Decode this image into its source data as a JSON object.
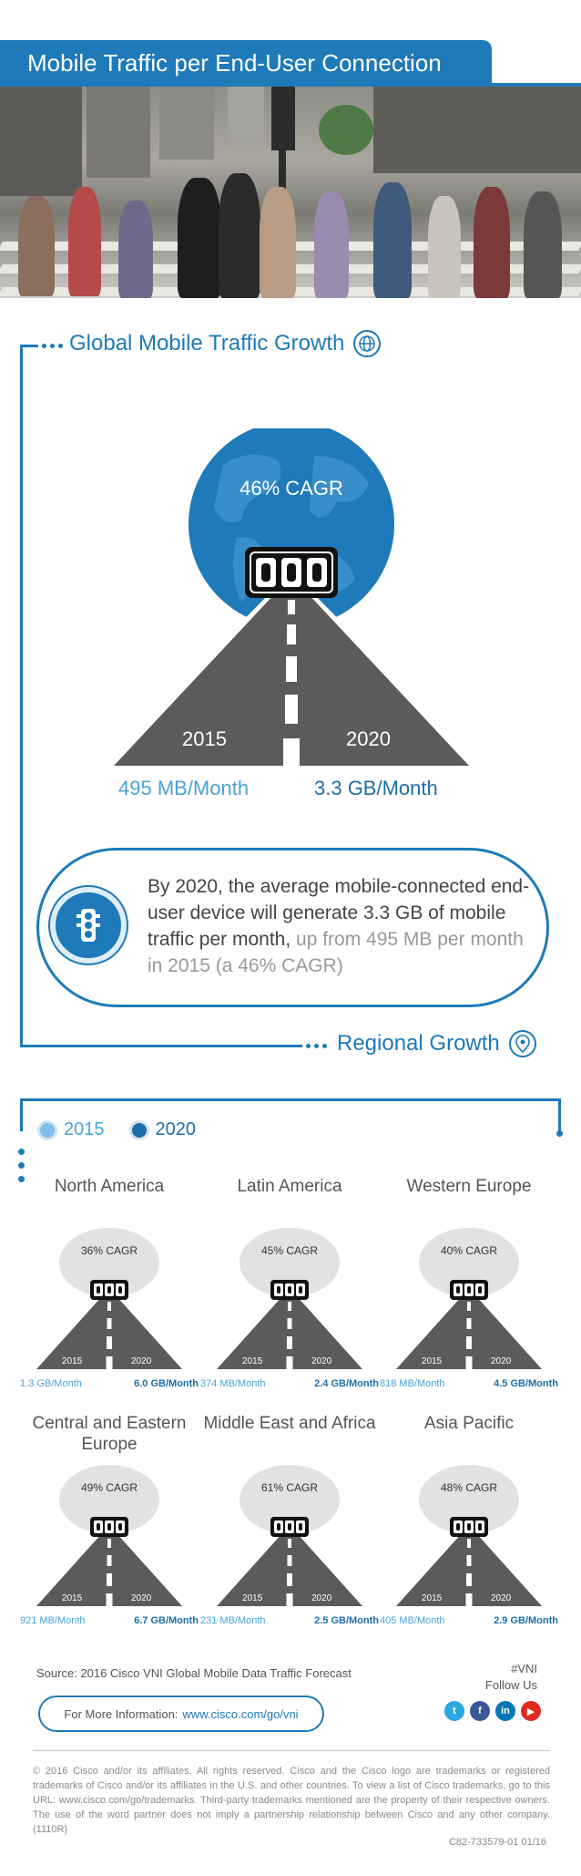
{
  "header": {
    "title": "Mobile Traffic per End-User Connection"
  },
  "global": {
    "heading": "Global Mobile Traffic Growth",
    "heading_icon": "globe-icon",
    "cagr": "46% CAGR",
    "year_start": "2015",
    "year_end": "2020",
    "rate_start": "495 MB/Month",
    "rate_end": "3.3 GB/Month",
    "colors": {
      "light": "#4aa3d8",
      "dark": "#1e6fa8",
      "road": "#5b5b5b"
    }
  },
  "callout": {
    "icon": "traffic-light-icon",
    "strong_text": "By 2020, the average mobile-connected end-user device will generate 3.3 GB of mobile traffic per month,",
    "light_text": " up from 495 MB per month in 2015 (a 46% CAGR)"
  },
  "regional": {
    "heading": "Regional Growth",
    "heading_icon": "location-pin-icon",
    "legend_2015": "2015",
    "legend_2020": "2020",
    "regions": [
      {
        "name": "North America",
        "cagr": "36% CAGR",
        "y2015": "2015",
        "y2020": "2020",
        "rate_2015": "1.3 GB/Month",
        "rate_2020": "6.0 GB/Month"
      },
      {
        "name": "Latin America",
        "cagr": "45% CAGR",
        "y2015": "2015",
        "y2020": "2020",
        "rate_2015": "374 MB/Month",
        "rate_2020": "2.4 GB/Month"
      },
      {
        "name": "Western Europe",
        "cagr": "40% CAGR",
        "y2015": "2015",
        "y2020": "2020",
        "rate_2015": "818 MB/Month",
        "rate_2020": "4.5 GB/Month"
      },
      {
        "name": "Central and Eastern Europe",
        "cagr": "49% CAGR",
        "y2015": "2015",
        "y2020": "2020",
        "rate_2015": "921 MB/Month",
        "rate_2020": "6.7 GB/Month"
      },
      {
        "name": "Middle East and Africa",
        "cagr": "61% CAGR",
        "y2015": "2015",
        "y2020": "2020",
        "rate_2015": "231 MB/Month",
        "rate_2020": "2.5 GB/Month"
      },
      {
        "name": "Asia Pacific",
        "cagr": "48% CAGR",
        "y2015": "2015",
        "y2020": "2020",
        "rate_2015": "405 MB/Month",
        "rate_2020": "2.9 GB/Month"
      }
    ]
  },
  "footer": {
    "source": "Source: 2016 Cisco VNI Global Mobile Data Traffic Forecast",
    "hashtag": "#VNI",
    "follow": "Follow Us",
    "social": [
      "twitter-icon",
      "facebook-icon",
      "linkedin-icon",
      "youtube-icon"
    ],
    "more_label": "For More Information:",
    "more_link": "www.cisco.com/go/vni",
    "legal": "© 2016 Cisco and/or its affiliates. All rights reserved. Cisco and the Cisco logo are trademarks or registered trademarks of Cisco and/or its affiliates in the U.S. and other countries. To view a list of Cisco trademarks, go to this URL: www.cisco.com/go/trademarks. Third-party trademarks mentioned are the property of their respective owners. The use of the word partner does not imply a partnership relationship between Cisco and any other company. (1110R)",
    "code": "C82-733579-01   01/16"
  }
}
